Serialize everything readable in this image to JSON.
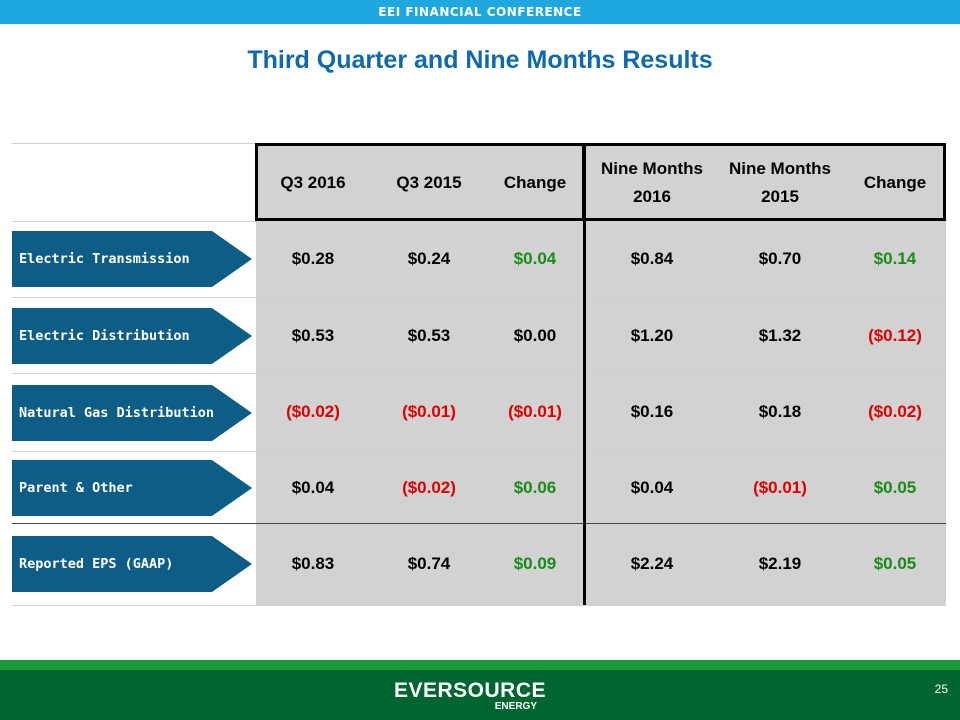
{
  "header": {
    "conference": "EEI FINANCIAL CONFERENCE"
  },
  "title": "Third Quarter and Nine Months Results",
  "columns": [
    "Q3 2016",
    "Q3 2015",
    "Change",
    "Nine Months 2016",
    "Nine Months 2015",
    "Change"
  ],
  "rows": [
    {
      "label": "Electric Transmission",
      "values": [
        "$0.28",
        "$0.24",
        "$0.04",
        "$0.84",
        "$0.70",
        "$0.14"
      ]
    },
    {
      "label": "Electric Distribution",
      "values": [
        "$0.53",
        "$0.53",
        "$0.00",
        "$1.20",
        "$1.32",
        "($0.12)"
      ]
    },
    {
      "label": "Natural Gas Distribution",
      "values": [
        "($0.02)",
        "($0.01)",
        "($0.01)",
        "$0.16",
        "$0.18",
        "($0.02)"
      ]
    },
    {
      "label": "Parent & Other",
      "values": [
        "$0.04",
        "($0.02)",
        "$0.06",
        "$0.04",
        "($0.01)",
        "$0.05"
      ]
    },
    {
      "label": "Reported EPS (GAAP)",
      "values": [
        "$0.83",
        "$0.74",
        "$0.09",
        "$2.24",
        "$2.19",
        "$0.05"
      ]
    }
  ],
  "colors": {
    "positive_change": "#1a8a1a",
    "negative": "#e00000",
    "neutral": "#000000",
    "title": "#0e6aad",
    "label_arrow": "#0e5d86",
    "footer": "#00662f"
  },
  "footer": {
    "logo_main": "EVERSOURCE",
    "logo_sub": "ENERGY",
    "page_number": "25"
  }
}
